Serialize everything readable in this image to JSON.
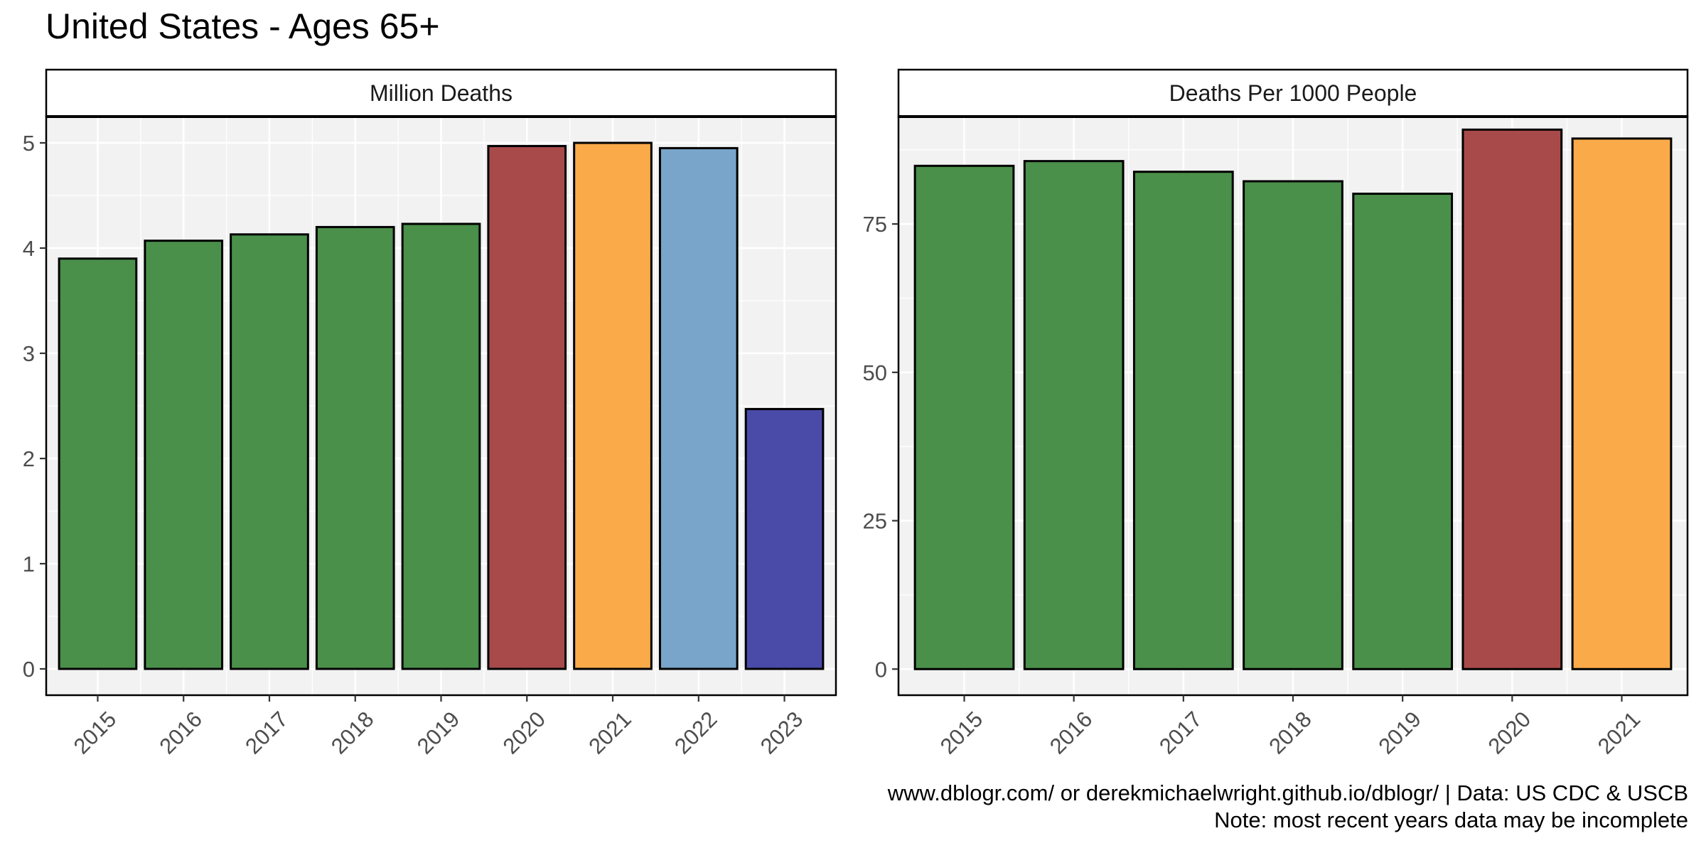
{
  "title": "United States - Ages 65+",
  "caption": {
    "line1": "www.dblogr.com/ or derekmichaelwright.github.io/dblogr/ | Data: US CDC & USCB",
    "line2": "Note: most recent years data may be incomplete"
  },
  "chart_data": [
    {
      "type": "bar",
      "title": "Million Deaths",
      "categories": [
        "2015",
        "2016",
        "2017",
        "2018",
        "2019",
        "2020",
        "2021",
        "2022",
        "2023"
      ],
      "values": [
        3.9,
        4.07,
        4.13,
        4.2,
        4.23,
        4.97,
        5.0,
        4.95,
        2.47
      ],
      "colors": [
        "#4a8f4a",
        "#4a8f4a",
        "#4a8f4a",
        "#4a8f4a",
        "#4a8f4a",
        "#a84a4a",
        "#fbaa4a",
        "#78a5c9",
        "#4a4aa8"
      ],
      "yticks": [
        0,
        1,
        2,
        3,
        4,
        5
      ],
      "ylim": [
        -0.25,
        5.25
      ],
      "grid": true,
      "xlabel": "",
      "ylabel": ""
    },
    {
      "type": "bar",
      "title": "Deaths Per 1000 People",
      "categories": [
        "2015",
        "2016",
        "2017",
        "2018",
        "2019",
        "2020",
        "2021"
      ],
      "values": [
        84.8,
        85.6,
        83.8,
        82.2,
        80.1,
        90.9,
        89.4
      ],
      "colors": [
        "#4a8f4a",
        "#4a8f4a",
        "#4a8f4a",
        "#4a8f4a",
        "#4a8f4a",
        "#a84a4a",
        "#fbaa4a"
      ],
      "yticks": [
        0,
        25,
        50,
        75
      ],
      "ylim": [
        -4.4,
        93.1
      ],
      "grid": true,
      "xlabel": "",
      "ylabel": ""
    }
  ]
}
